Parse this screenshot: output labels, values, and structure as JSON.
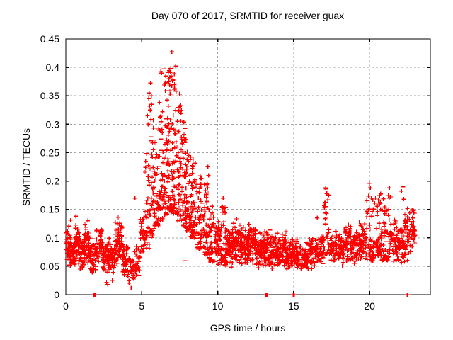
{
  "window": {
    "background": "#ffffff"
  },
  "chart_data": {
    "type": "scatter",
    "title": "Day 070 of 2017, SRMTID for receiver guax",
    "xlabel": "GPS time / hours",
    "ylabel": "SRMTID / TECUs",
    "xlim": [
      0,
      24
    ],
    "ylim": [
      0,
      0.45
    ],
    "xticks": [
      0,
      5,
      10,
      15,
      20
    ],
    "xtick_labels": [
      "0",
      "5",
      "10",
      "15",
      "20"
    ],
    "yticks": [
      0,
      0.05,
      0.1,
      0.15,
      0.2,
      0.25,
      0.3,
      0.35,
      0.4,
      0.45
    ],
    "ytick_labels": [
      "0",
      "0.05",
      "0.1",
      "0.15",
      "0.2",
      "0.25",
      "0.3",
      "0.35",
      "0.4",
      "0.45"
    ],
    "grid": true,
    "legend": "none",
    "marker": "plus",
    "marker_color": "#ff0000",
    "grid_color": "#a0a0a0",
    "frame_color": "#000000",
    "seed": 1234,
    "summary": "Dense SRMTID time series: baseline ~0.05-0.12 TECUs, large disturbance peak hours 5-9.5 reaching max ~0.43 near hour 7, small spikes near hours 17, 20-21 and 22.5, isolated zero values near hours 1.9, 13.2, 15.0, 22.5",
    "bands": [
      [
        0.0,
        0.3,
        0.045,
        0.125,
        42,
        0
      ],
      [
        0.3,
        0.6,
        0.04,
        0.105,
        40,
        0
      ],
      [
        0.6,
        0.9,
        0.05,
        0.135,
        45,
        0
      ],
      [
        0.9,
        1.2,
        0.04,
        0.105,
        40,
        0
      ],
      [
        1.2,
        1.6,
        0.05,
        0.128,
        55,
        0
      ],
      [
        1.6,
        2.0,
        0.035,
        0.1,
        45,
        0
      ],
      [
        2.0,
        2.4,
        0.05,
        0.122,
        50,
        0
      ],
      [
        2.4,
        2.8,
        0.035,
        0.098,
        45,
        0
      ],
      [
        2.8,
        3.2,
        0.03,
        0.102,
        45,
        0
      ],
      [
        3.2,
        3.7,
        0.05,
        0.132,
        60,
        0
      ],
      [
        3.7,
        4.1,
        0.028,
        0.1,
        40,
        0
      ],
      [
        4.1,
        4.5,
        0.015,
        0.072,
        28,
        0
      ],
      [
        4.5,
        4.9,
        0.03,
        0.092,
        28,
        0
      ],
      [
        4.9,
        5.2,
        0.05,
        0.145,
        28,
        0
      ],
      [
        5.2,
        5.5,
        0.08,
        0.25,
        32,
        1
      ],
      [
        5.5,
        5.8,
        0.1,
        0.34,
        36,
        1
      ],
      [
        5.8,
        6.1,
        0.12,
        0.27,
        38,
        1
      ],
      [
        6.1,
        6.4,
        0.13,
        0.34,
        42,
        1
      ],
      [
        6.4,
        6.7,
        0.14,
        0.385,
        45,
        1
      ],
      [
        6.7,
        7.0,
        0.145,
        0.4,
        48,
        1
      ],
      [
        7.0,
        7.3,
        0.14,
        0.41,
        48,
        1
      ],
      [
        7.3,
        7.6,
        0.13,
        0.36,
        44,
        1
      ],
      [
        7.6,
        7.9,
        0.12,
        0.31,
        42,
        1
      ],
      [
        7.9,
        8.2,
        0.11,
        0.275,
        42,
        1
      ],
      [
        8.2,
        8.6,
        0.1,
        0.245,
        50,
        1
      ],
      [
        8.6,
        9.0,
        0.08,
        0.215,
        50,
        1
      ],
      [
        9.0,
        9.4,
        0.07,
        0.205,
        46,
        1
      ],
      [
        9.4,
        9.8,
        0.058,
        0.16,
        46,
        1
      ],
      [
        9.8,
        10.2,
        0.05,
        0.135,
        52,
        0
      ],
      [
        10.2,
        10.6,
        0.05,
        0.155,
        52,
        1
      ],
      [
        10.6,
        11.0,
        0.048,
        0.122,
        55,
        0
      ],
      [
        11.0,
        11.5,
        0.05,
        0.138,
        68,
        0
      ],
      [
        11.5,
        12.0,
        0.045,
        0.122,
        68,
        0
      ],
      [
        12.0,
        12.5,
        0.05,
        0.132,
        68,
        0
      ],
      [
        12.5,
        13.0,
        0.04,
        0.118,
        66,
        0
      ],
      [
        13.0,
        13.5,
        0.045,
        0.12,
        60,
        0
      ],
      [
        13.5,
        14.0,
        0.04,
        0.112,
        60,
        0
      ],
      [
        14.0,
        14.5,
        0.045,
        0.115,
        58,
        0
      ],
      [
        14.5,
        15.0,
        0.04,
        0.102,
        55,
        0
      ],
      [
        15.0,
        15.5,
        0.035,
        0.1,
        50,
        0
      ],
      [
        15.5,
        16.0,
        0.04,
        0.096,
        50,
        0
      ],
      [
        16.0,
        16.5,
        0.04,
        0.106,
        50,
        0
      ],
      [
        16.5,
        17.0,
        0.05,
        0.118,
        50,
        0
      ],
      [
        17.0,
        17.35,
        0.07,
        0.19,
        28,
        1
      ],
      [
        17.35,
        17.8,
        0.05,
        0.115,
        42,
        0
      ],
      [
        17.8,
        18.3,
        0.045,
        0.112,
        50,
        0
      ],
      [
        18.3,
        18.8,
        0.05,
        0.13,
        50,
        0
      ],
      [
        18.8,
        19.3,
        0.05,
        0.118,
        50,
        0
      ],
      [
        19.3,
        19.8,
        0.055,
        0.132,
        50,
        0
      ],
      [
        19.8,
        20.3,
        0.06,
        0.175,
        50,
        1
      ],
      [
        20.3,
        20.8,
        0.068,
        0.18,
        54,
        1
      ],
      [
        20.8,
        21.3,
        0.06,
        0.175,
        50,
        1
      ],
      [
        21.3,
        21.8,
        0.05,
        0.142,
        48,
        0
      ],
      [
        21.8,
        22.3,
        0.045,
        0.132,
        48,
        0
      ],
      [
        22.3,
        22.75,
        0.05,
        0.158,
        46,
        0
      ],
      [
        22.75,
        23.0,
        0.068,
        0.158,
        30,
        0
      ]
    ],
    "outliers": [
      [
        6.98,
        0.4275
      ],
      [
        6.25,
        0.3925
      ],
      [
        6.45,
        0.3975
      ],
      [
        6.3,
        0.39
      ],
      [
        6.85,
        0.3825
      ],
      [
        7.05,
        0.3775
      ],
      [
        6.9,
        0.398
      ],
      [
        7.15,
        0.37
      ],
      [
        5.58,
        0.3725
      ],
      [
        5.5,
        0.355
      ],
      [
        5.62,
        0.35
      ],
      [
        5.45,
        0.345
      ],
      [
        5.38,
        0.315
      ],
      [
        5.55,
        0.325
      ],
      [
        5.65,
        0.335
      ],
      [
        5.42,
        0.3
      ],
      [
        4.55,
        0.17
      ],
      [
        9.3,
        0.195
      ],
      [
        9.35,
        0.225
      ],
      [
        9.4,
        0.21
      ],
      [
        7.85,
        0.06
      ],
      [
        10.3,
        0.155
      ],
      [
        10.35,
        0.17
      ],
      [
        0.3,
        0.131
      ],
      [
        0.65,
        0.138
      ],
      [
        1.45,
        0.13
      ],
      [
        3.45,
        0.136
      ],
      [
        2.68,
        0.022
      ],
      [
        2.75,
        0.018
      ],
      [
        4.15,
        0.02
      ],
      [
        4.3,
        0.012
      ],
      [
        3.05,
        0.025
      ],
      [
        16.55,
        0.135
      ],
      [
        17.1,
        0.188
      ],
      [
        17.18,
        0.178
      ],
      [
        19.98,
        0.196
      ],
      [
        20.05,
        0.188
      ],
      [
        21.3,
        0.188
      ],
      [
        21.38,
        0.172
      ],
      [
        22.1,
        0.182
      ],
      [
        22.2,
        0.19
      ],
      [
        22.25,
        0.168
      ],
      [
        1.85,
        0.0
      ],
      [
        1.92,
        0.0
      ],
      [
        13.17,
        0.0
      ],
      [
        13.24,
        0.0
      ],
      [
        14.97,
        0.0
      ],
      [
        15.04,
        0.0
      ],
      [
        22.47,
        0.0
      ],
      [
        22.53,
        0.0
      ]
    ]
  }
}
